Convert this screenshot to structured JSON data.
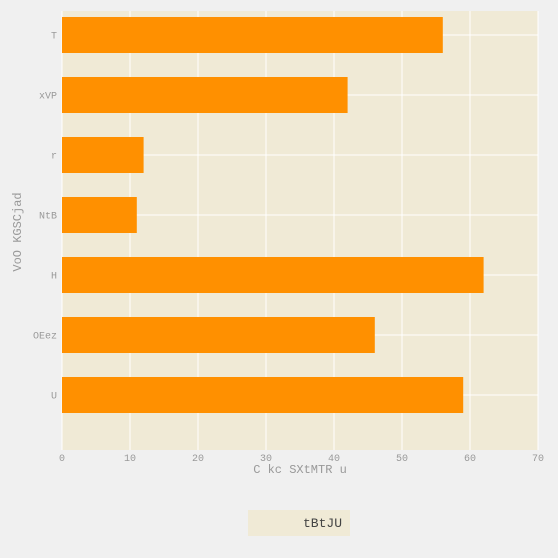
{
  "chart_data": {
    "type": "bar",
    "orientation": "horizontal",
    "categories": [
      "T",
      "xVP",
      "r",
      "NtB",
      "H",
      "OEez",
      "U"
    ],
    "series": [
      {
        "name": "tBtJU",
        "values": [
          56,
          42,
          12,
          11,
          62,
          46,
          59
        ],
        "color": "#ff9000"
      }
    ],
    "xlabel": "C kc SXtMTR u",
    "ylabel": "VoO KGSCjad",
    "xlim": [
      0,
      70
    ],
    "xticks": [
      0,
      10,
      20,
      30,
      40,
      50,
      60,
      70
    ],
    "grid": true,
    "legend": "bottom-center",
    "colors": {
      "plot_background": "#f0ead6",
      "page_background": "#f0f0f0",
      "grid": "#ffffff",
      "text": "#999999"
    }
  }
}
